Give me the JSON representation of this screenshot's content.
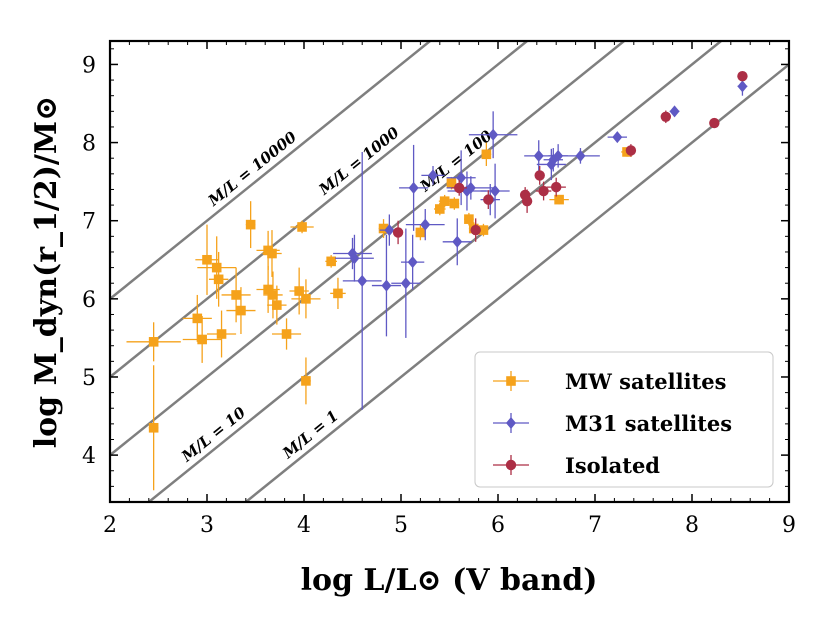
{
  "chart_data": {
    "type": "scatter",
    "xlabel": "log L/L⊙ (V band)",
    "ylabel": "log M_dyn(r_1/2)/M⊙",
    "xlim": [
      2,
      9
    ],
    "ylim": [
      3.4,
      9.3
    ],
    "x_ticks": [
      2,
      3,
      4,
      5,
      6,
      7,
      8,
      9
    ],
    "x_tick_labels": [
      "2",
      "3",
      "4",
      "5",
      "6",
      "7",
      "8",
      "9"
    ],
    "y_ticks": [
      4,
      5,
      6,
      7,
      8,
      9
    ],
    "y_tick_labels": [
      "4",
      "5",
      "6",
      "7",
      "8",
      "9"
    ],
    "reference_lines": [
      {
        "ml": 10000,
        "label": "M/L = 10000",
        "label_x": 3.5
      },
      {
        "ml": 1000,
        "label": "M/L = 1000",
        "label_x": 4.6
      },
      {
        "ml": 100,
        "label": "M/L = 100",
        "label_x": 5.6
      },
      {
        "ml": 10,
        "label": "M/L = 10",
        "label_x": 3.1
      },
      {
        "ml": 1,
        "label": "M/L = 1",
        "label_x": 4.1
      }
    ],
    "legend": {
      "position": "lower-right"
    },
    "series": [
      {
        "name": "MW satellites",
        "marker": "square",
        "color": "#f5a21b",
        "points": [
          {
            "x": 2.45,
            "y": 5.45,
            "xerr": 0.28,
            "yerr": 0.25
          },
          {
            "x": 2.45,
            "y": 4.35,
            "xerr": 0.05,
            "yerr": 0.8
          },
          {
            "x": 2.9,
            "y": 5.75,
            "xerr": 0.15,
            "yerr": 0.3
          },
          {
            "x": 2.95,
            "y": 5.48,
            "xerr": 0.2,
            "yerr": 0.3
          },
          {
            "x": 3.0,
            "y": 6.5,
            "xerr": 0.12,
            "yerr": 0.45
          },
          {
            "x": 3.1,
            "y": 6.4,
            "xerr": 0.2,
            "yerr": 0.4
          },
          {
            "x": 3.12,
            "y": 6.25,
            "xerr": 0.1,
            "yerr": 0.35
          },
          {
            "x": 3.15,
            "y": 5.55,
            "xerr": 0.15,
            "yerr": 0.3
          },
          {
            "x": 3.3,
            "y": 6.05,
            "xerr": 0.15,
            "yerr": 0.35
          },
          {
            "x": 3.35,
            "y": 5.85,
            "xerr": 0.15,
            "yerr": 0.3
          },
          {
            "x": 3.45,
            "y": 6.95,
            "xerr": 0.05,
            "yerr": 0.3
          },
          {
            "x": 3.63,
            "y": 6.62,
            "xerr": 0.12,
            "yerr": 0.25
          },
          {
            "x": 3.63,
            "y": 6.12,
            "xerr": 0.12,
            "yerr": 0.3
          },
          {
            "x": 3.67,
            "y": 6.58,
            "xerr": 0.1,
            "yerr": 0.3
          },
          {
            "x": 3.68,
            "y": 6.05,
            "xerr": 0.1,
            "yerr": 0.3
          },
          {
            "x": 3.72,
            "y": 5.92,
            "xerr": 0.1,
            "yerr": 0.25
          },
          {
            "x": 3.82,
            "y": 5.55,
            "xerr": 0.15,
            "yerr": 0.2
          },
          {
            "x": 3.95,
            "y": 6.1,
            "xerr": 0.1,
            "yerr": 0.3
          },
          {
            "x": 3.98,
            "y": 6.92,
            "xerr": 0.12,
            "yerr": 0.08
          },
          {
            "x": 4.02,
            "y": 6.0,
            "xerr": 0.15,
            "yerr": 0.25
          },
          {
            "x": 4.02,
            "y": 4.95,
            "xerr": 0.05,
            "yerr": 0.3
          },
          {
            "x": 4.28,
            "y": 6.48,
            "xerr": 0.06,
            "yerr": 0.08
          },
          {
            "x": 4.35,
            "y": 6.07,
            "xerr": 0.08,
            "yerr": 0.2
          },
          {
            "x": 4.82,
            "y": 6.9,
            "xerr": 0.05,
            "yerr": 0.12
          },
          {
            "x": 5.2,
            "y": 6.85,
            "xerr": 0.05,
            "yerr": 0.1
          },
          {
            "x": 5.4,
            "y": 7.15,
            "xerr": 0.06,
            "yerr": 0.08
          },
          {
            "x": 5.45,
            "y": 7.25,
            "xerr": 0.06,
            "yerr": 0.08
          },
          {
            "x": 5.52,
            "y": 7.48,
            "xerr": 0.05,
            "yerr": 0.08
          },
          {
            "x": 5.55,
            "y": 7.22,
            "xerr": 0.05,
            "yerr": 0.08
          },
          {
            "x": 5.7,
            "y": 7.02,
            "xerr": 0.05,
            "yerr": 0.08
          },
          {
            "x": 5.75,
            "y": 6.9,
            "xerr": 0.05,
            "yerr": 0.08
          },
          {
            "x": 5.85,
            "y": 6.88,
            "xerr": 0.05,
            "yerr": 0.08
          },
          {
            "x": 5.88,
            "y": 7.85,
            "xerr": 0.05,
            "yerr": 0.15
          },
          {
            "x": 6.63,
            "y": 7.27,
            "xerr": 0.1,
            "yerr": 0.06
          },
          {
            "x": 7.33,
            "y": 7.88,
            "xerr": 0.06,
            "yerr": 0.06
          }
        ]
      },
      {
        "name": "M31 satellites",
        "marker": "diamond",
        "color": "#5f59c4",
        "points": [
          {
            "x": 4.5,
            "y": 6.58,
            "xerr": 0.2,
            "yerr": 0.2
          },
          {
            "x": 4.52,
            "y": 6.52,
            "xerr": 0.2,
            "yerr": 0.3
          },
          {
            "x": 4.6,
            "y": 6.23,
            "xerr": 0.2,
            "yerr": 1.65
          },
          {
            "x": 4.85,
            "y": 6.17,
            "xerr": 0.15,
            "yerr": 0.65
          },
          {
            "x": 4.88,
            "y": 6.88,
            "xerr": 0.1,
            "yerr": 0.2
          },
          {
            "x": 5.05,
            "y": 6.2,
            "xerr": 0.15,
            "yerr": 0.7
          },
          {
            "x": 5.12,
            "y": 6.47,
            "xerr": 0.12,
            "yerr": 0.35
          },
          {
            "x": 5.13,
            "y": 7.42,
            "xerr": 0.15,
            "yerr": 0.55
          },
          {
            "x": 5.25,
            "y": 6.95,
            "xerr": 0.2,
            "yerr": 0.2
          },
          {
            "x": 5.33,
            "y": 7.58,
            "xerr": 0.12,
            "yerr": 0.12
          },
          {
            "x": 5.58,
            "y": 6.73,
            "xerr": 0.15,
            "yerr": 0.3
          },
          {
            "x": 5.62,
            "y": 7.55,
            "xerr": 0.15,
            "yerr": 0.35
          },
          {
            "x": 5.68,
            "y": 7.38,
            "xerr": 0.2,
            "yerr": 0.25
          },
          {
            "x": 5.72,
            "y": 7.42,
            "xerr": 0.25,
            "yerr": 0.15
          },
          {
            "x": 5.92,
            "y": 7.27,
            "xerr": 0.1,
            "yerr": 0.2
          },
          {
            "x": 5.95,
            "y": 8.1,
            "xerr": 0.25,
            "yerr": 0.3
          },
          {
            "x": 5.97,
            "y": 7.38,
            "xerr": 0.15,
            "yerr": 0.35
          },
          {
            "x": 6.42,
            "y": 7.83,
            "xerr": 0.15,
            "yerr": 0.2
          },
          {
            "x": 6.55,
            "y": 7.72,
            "xerr": 0.15,
            "yerr": 0.2
          },
          {
            "x": 6.57,
            "y": 7.78,
            "xerr": 0.1,
            "yerr": 0.15
          },
          {
            "x": 6.62,
            "y": 7.83,
            "xerr": 0.1,
            "yerr": 0.15
          },
          {
            "x": 6.85,
            "y": 7.83,
            "xerr": 0.2,
            "yerr": 0.1
          },
          {
            "x": 7.23,
            "y": 8.07,
            "xerr": 0.1,
            "yerr": 0.06
          },
          {
            "x": 7.82,
            "y": 8.4,
            "xerr": 0.05,
            "yerr": 0.06
          },
          {
            "x": 8.52,
            "y": 8.72,
            "xerr": 0.05,
            "yerr": 0.12
          }
        ]
      },
      {
        "name": "Isolated",
        "marker": "circle",
        "color": "#ac2e45",
        "points": [
          {
            "x": 4.97,
            "y": 6.85,
            "xerr": 0.05,
            "yerr": 0.15
          },
          {
            "x": 5.6,
            "y": 7.42,
            "xerr": 0.08,
            "yerr": 0.1
          },
          {
            "x": 5.77,
            "y": 6.88,
            "xerr": 0.05,
            "yerr": 0.15
          },
          {
            "x": 5.9,
            "y": 7.27,
            "xerr": 0.05,
            "yerr": 0.12
          },
          {
            "x": 6.28,
            "y": 7.33,
            "xerr": 0.05,
            "yerr": 0.1
          },
          {
            "x": 6.3,
            "y": 7.25,
            "xerr": 0.05,
            "yerr": 0.15
          },
          {
            "x": 6.43,
            "y": 7.58,
            "xerr": 0.05,
            "yerr": 0.12
          },
          {
            "x": 6.47,
            "y": 7.38,
            "xerr": 0.08,
            "yerr": 0.12
          },
          {
            "x": 6.6,
            "y": 7.43,
            "xerr": 0.1,
            "yerr": 0.12
          },
          {
            "x": 7.37,
            "y": 7.9,
            "xerr": 0.05,
            "yerr": 0.08
          },
          {
            "x": 7.73,
            "y": 8.33,
            "xerr": 0.05,
            "yerr": 0.08
          },
          {
            "x": 8.23,
            "y": 8.25,
            "xerr": 0.05,
            "yerr": 0.06
          },
          {
            "x": 8.52,
            "y": 8.85,
            "xerr": 0.05,
            "yerr": 0.06
          }
        ]
      }
    ]
  }
}
